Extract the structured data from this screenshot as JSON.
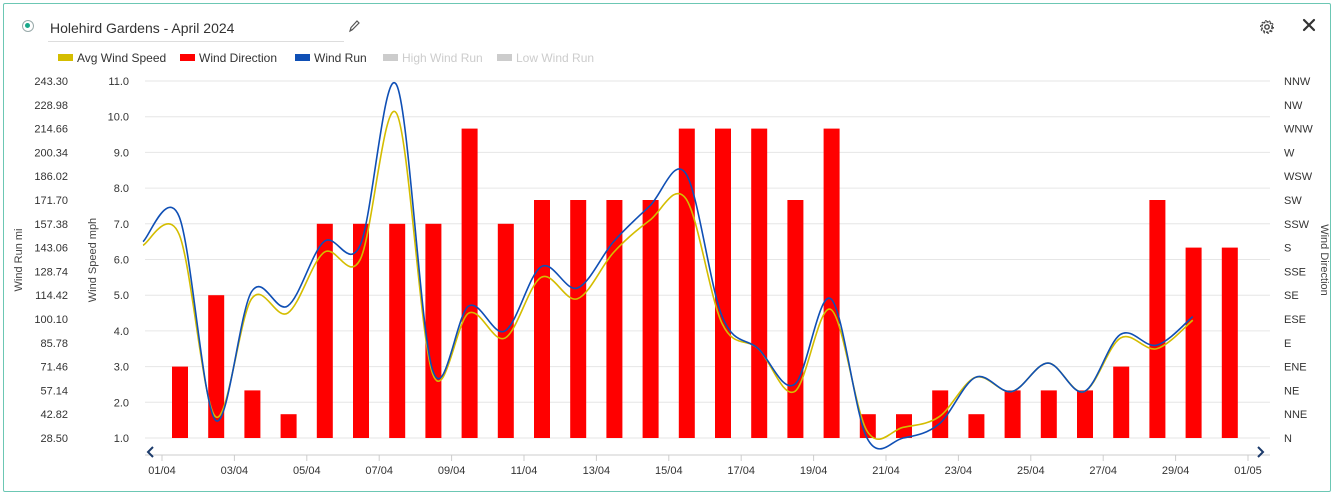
{
  "header": {
    "title": "Holehird Gardens - April 2024"
  },
  "icons": {
    "status": "status-dot-icon",
    "edit": "pencil-icon",
    "settings": "gear-icon",
    "close": "close-icon",
    "nav_left": "chevron-left-icon",
    "nav_right": "chevron-right-icon"
  },
  "legend": [
    {
      "label": "Avg Wind Speed",
      "color": "#d4bd00",
      "visible": true
    },
    {
      "label": "Wind Direction",
      "color": "#ff0000",
      "visible": true
    },
    {
      "label": "Wind Run",
      "color": "#0f4fb5",
      "visible": true
    },
    {
      "label": "High Wind Run",
      "color": "#cccccc",
      "visible": false
    },
    {
      "label": "Low Wind Run",
      "color": "#cccccc",
      "visible": false
    }
  ],
  "chart_data": {
    "type": "bar",
    "title": "",
    "axes": {
      "left_outer": {
        "label": "Wind Run mi",
        "ticks": [
          "28.50",
          "42.82",
          "57.14",
          "71.46",
          "85.78",
          "100.10",
          "114.42",
          "128.74",
          "143.06",
          "157.38",
          "171.70",
          "186.02",
          "200.34",
          "214.66",
          "228.98",
          "243.30"
        ]
      },
      "left_inner": {
        "label": "Wind Speed mph",
        "ticks": [
          "1.0",
          "2.0",
          "3.0",
          "4.0",
          "5.0",
          "6.0",
          "7.0",
          "8.0",
          "9.0",
          "10.0",
          "11.0"
        ]
      },
      "right": {
        "label": "Wind Direction",
        "ticks": [
          "N",
          "NNE",
          "NE",
          "ENE",
          "E",
          "ESE",
          "SE",
          "SSE",
          "S",
          "SSW",
          "SW",
          "WSW",
          "W",
          "WNW",
          "NW",
          "NNW"
        ]
      },
      "x": {
        "ticks": [
          "01/04",
          "03/04",
          "05/04",
          "07/04",
          "09/04",
          "11/04",
          "13/04",
          "15/04",
          "17/04",
          "19/04",
          "21/04",
          "23/04",
          "25/04",
          "27/04",
          "29/04",
          "01/05"
        ]
      }
    },
    "dates": [
      "01/04",
      "02/04",
      "03/04",
      "04/04",
      "05/04",
      "06/04",
      "07/04",
      "08/04",
      "09/04",
      "10/04",
      "11/04",
      "12/04",
      "13/04",
      "14/04",
      "15/04",
      "16/04",
      "17/04",
      "18/04",
      "19/04",
      "20/04",
      "21/04",
      "22/04",
      "23/04",
      "24/04",
      "25/04",
      "26/04",
      "27/04",
      "28/04",
      "29/04",
      "30/04"
    ],
    "series": [
      {
        "name": "Wind Direction",
        "type": "bar",
        "color": "#ff0000",
        "values": [
          "ENE",
          "SE",
          "NE",
          "NNE",
          "SSW",
          "SSW",
          "SSW",
          "SSW",
          "WNW",
          "SSW",
          "SW",
          "SW",
          "SW",
          "SW",
          "WNW",
          "WNW",
          "WNW",
          "SW",
          "WNW",
          "NNE",
          "NNE",
          "NE",
          "NNE",
          "NE",
          "NE",
          "NE",
          "ENE",
          "SW",
          "S",
          "S"
        ]
      },
      {
        "name": "Avg Wind Speed",
        "type": "line",
        "color": "#d4bd00",
        "values": [
          6.4,
          6.7,
          1.6,
          4.9,
          4.5,
          6.2,
          6.0,
          10.1,
          2.8,
          4.5,
          3.8,
          5.5,
          4.9,
          6.2,
          7.1,
          7.7,
          4.2,
          3.5,
          2.3,
          4.6,
          1.2,
          1.3,
          1.6,
          2.7,
          2.3,
          3.1,
          2.3,
          3.8,
          3.5,
          4.3
        ]
      },
      {
        "name": "Wind Run",
        "type": "line",
        "color": "#0f4fb5",
        "values": [
          6.5,
          7.2,
          1.5,
          5.1,
          4.7,
          6.5,
          6.4,
          10.9,
          2.9,
          4.7,
          4.0,
          5.8,
          5.2,
          6.5,
          7.5,
          8.4,
          4.4,
          3.5,
          2.5,
          4.9,
          1.0,
          1.0,
          1.4,
          2.7,
          2.3,
          3.1,
          2.3,
          3.9,
          3.6,
          4.4
        ]
      }
    ],
    "ylim_speed": [
      1.0,
      11.0
    ],
    "grid": true,
    "legend_position": "top-left"
  }
}
